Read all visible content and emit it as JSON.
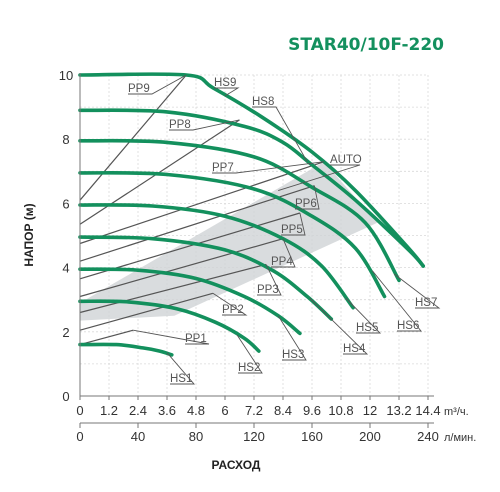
{
  "chart_data": {
    "type": "line",
    "title": "STAR40/10F-220",
    "ylabel": "НАПОР (м)",
    "xlabel": "РАСХОД",
    "x_unit_top": "m³/ч.",
    "x_unit_bottom": "л/мин.",
    "xlim": [
      0,
      14.4
    ],
    "ylim": [
      0,
      10
    ],
    "grid": true,
    "x_ticks_top": [
      "0",
      "1.2",
      "2.4",
      "3.6",
      "4.8",
      "6",
      "7.2",
      "8.4",
      "9.6",
      "10.8",
      "12",
      "13.2",
      "14.4"
    ],
    "x_ticks_bottom": [
      "0",
      "40",
      "80",
      "120",
      "160",
      "200",
      "240"
    ],
    "y_ticks": [
      "0",
      "2",
      "4",
      "6",
      "8",
      "10"
    ],
    "series": [
      {
        "name": "HS1",
        "kind": "speed",
        "x": [
          0,
          1.5,
          2.6,
          3.3,
          3.8
        ],
        "y": [
          1.6,
          1.6,
          1.5,
          1.4,
          1.28
        ]
      },
      {
        "name": "HS2",
        "kind": "speed",
        "x": [
          0,
          2.0,
          4.0,
          5.6,
          6.8,
          7.4
        ],
        "y": [
          2.95,
          2.93,
          2.72,
          2.3,
          1.8,
          1.4
        ]
      },
      {
        "name": "HS3",
        "kind": "speed",
        "x": [
          0,
          2.4,
          4.8,
          6.8,
          8.2,
          9.1
        ],
        "y": [
          3.95,
          3.92,
          3.66,
          3.1,
          2.5,
          1.95
        ]
      },
      {
        "name": "HS4",
        "kind": "speed",
        "x": [
          0,
          3.0,
          6.0,
          8.0,
          9.4,
          10.4
        ],
        "y": [
          4.95,
          4.9,
          4.55,
          3.9,
          3.1,
          2.4
        ]
      },
      {
        "name": "HS5",
        "kind": "speed",
        "x": [
          0,
          3.0,
          6.0,
          8.4,
          10.0,
          11.3
        ],
        "y": [
          5.95,
          5.92,
          5.6,
          4.9,
          4.05,
          2.75
        ]
      },
      {
        "name": "HS6",
        "kind": "speed",
        "x": [
          0,
          3.6,
          7.2,
          9.6,
          11.4,
          12.6
        ],
        "y": [
          6.95,
          6.9,
          6.45,
          5.6,
          4.6,
          3.1
        ]
      },
      {
        "name": "HS7",
        "kind": "speed",
        "x": [
          0,
          3.6,
          7.2,
          9.6,
          11.8,
          13.2
        ],
        "y": [
          7.95,
          7.9,
          7.45,
          6.5,
          5.4,
          3.6
        ]
      },
      {
        "name": "HS8",
        "kind": "speed",
        "x": [
          0,
          3.6,
          6.8,
          8.4,
          9.6,
          11.4,
          13.6,
          14.2
        ],
        "y": [
          8.9,
          8.85,
          8.4,
          7.9,
          7.2,
          6.1,
          4.55,
          4.05
        ]
      },
      {
        "name": "HS9",
        "kind": "speed",
        "x": [
          0,
          4.4,
          5.5,
          7.5,
          9.6,
          11.4,
          13.6,
          14.2
        ],
        "y": [
          10.0,
          10.0,
          9.6,
          8.7,
          7.6,
          6.4,
          4.6,
          4.05
        ]
      },
      {
        "name": "PP1",
        "kind": "pressure",
        "x": [
          0,
          2.2
        ],
        "y": [
          1.6,
          2.05
        ]
      },
      {
        "name": "PP2",
        "kind": "pressure",
        "x": [
          0,
          5.5
        ],
        "y": [
          2.05,
          3.2
        ]
      },
      {
        "name": "PP3",
        "kind": "pressure",
        "x": [
          0,
          7.7
        ],
        "y": [
          2.6,
          4.1
        ]
      },
      {
        "name": "PP4",
        "kind": "pressure",
        "x": [
          0,
          8.4
        ],
        "y": [
          3.1,
          4.9
        ]
      },
      {
        "name": "PP5",
        "kind": "pressure",
        "x": [
          0,
          9.1
        ],
        "y": [
          3.65,
          5.7
        ]
      },
      {
        "name": "PP6",
        "kind": "pressure",
        "x": [
          0,
          9.7
        ],
        "y": [
          4.2,
          6.55
        ]
      },
      {
        "name": "PP7",
        "kind": "pressure",
        "x": [
          0,
          10.1
        ],
        "y": [
          4.75,
          7.3
        ]
      },
      {
        "name": "PP8",
        "kind": "pressure",
        "x": [
          0,
          6.6
        ],
        "y": [
          5.35,
          8.6
        ]
      },
      {
        "name": "PP9",
        "kind": "pressure",
        "x": [
          0,
          4.4
        ],
        "y": [
          6.1,
          10.0
        ]
      }
    ],
    "auto_region": {
      "name": "AUTO",
      "x": [
        0,
        10.1,
        12.3,
        3.9,
        0
      ],
      "y": [
        2.9,
        7.3,
        5.4,
        2.5,
        2.35
      ]
    }
  }
}
